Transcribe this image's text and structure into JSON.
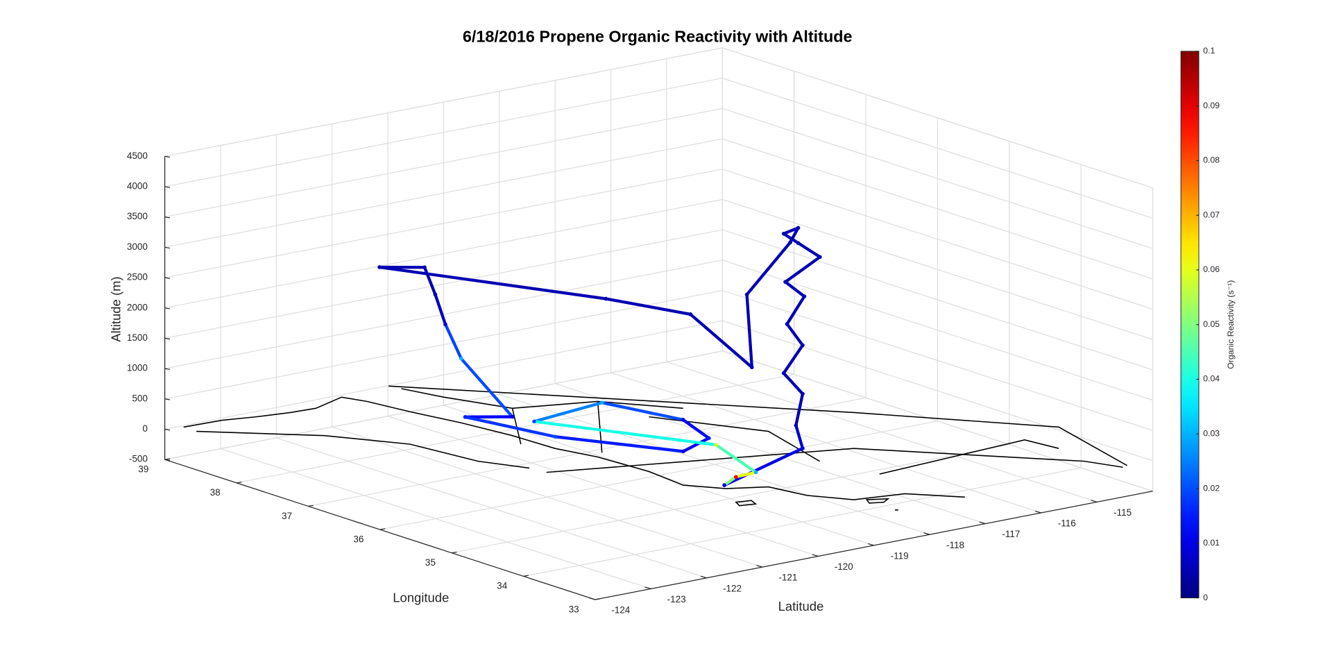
{
  "chart_data": {
    "type": "scatter3d",
    "title": "6/18/2016 Propene Organic Reactivity with Altitude",
    "xlabel": "Latitude",
    "ylabel": "Longitude",
    "zlabel": "Altitude (m)",
    "colorbar_label": "Organic Reactivity (s⁻¹)",
    "colormap": "jet",
    "clim": [
      0,
      0.1
    ],
    "cticks": [
      0,
      0.01,
      0.02,
      0.03,
      0.04,
      0.05,
      0.06,
      0.07,
      0.08,
      0.09,
      0.1
    ],
    "xlim": [
      -124,
      -114
    ],
    "xticks": [
      -124,
      -123,
      -122,
      -121,
      -120,
      -119,
      -118,
      -117,
      -116,
      -115
    ],
    "ylim": [
      33,
      39
    ],
    "yticks": [
      33,
      34,
      35,
      36,
      37,
      38,
      39
    ],
    "zlim": [
      -500,
      4500
    ],
    "zticks": [
      -500,
      0,
      500,
      1000,
      1500,
      2000,
      2500,
      3000,
      3500,
      4000,
      4500
    ],
    "grid": true,
    "series": [
      {
        "name": "Propene",
        "x": [
          -119.65,
          -117.5,
          -117.62,
          -117.5,
          -117.84,
          -117.5,
          -117.78,
          -117.47,
          -117.81,
          -117.19,
          -117.58,
          -117.84,
          -117.58,
          -117.44,
          -118.05,
          -118.41,
          -118.11,
          -119.15,
          -121.23,
          -120.73,
          -120.5,
          -120.37,
          -120.33,
          -119.67,
          -120.31,
          -119.98,
          -119.05,
          -118.41,
          -117.96,
          -118.28,
          -119.69,
          -118.77,
          -119.06,
          -119.34,
          -119.65
        ],
        "y": [
          34.58,
          35.16,
          35.16,
          35.16,
          35.16,
          35.16,
          35.16,
          35.16,
          35.16,
          35.16,
          35.16,
          35.16,
          35.16,
          35.38,
          35.51,
          35.16,
          36.25,
          36.62,
          38.16,
          37.92,
          37.95,
          37.91,
          37.72,
          37.52,
          37.68,
          36.68,
          35.62,
          35.76,
          36.47,
          37.35,
          37.2,
          35.38,
          34.6,
          34.66,
          34.58
        ],
        "z": [
          0,
          0,
          400,
          900,
          1300,
          1700,
          2100,
          2500,
          2800,
          3100,
          3400,
          3600,
          3650,
          3300,
          2500,
          1500,
          1900,
          2200,
          2500,
          2500,
          2000,
          1500,
          1000,
          0,
          50,
          50,
          50,
          100,
          50,
          50,
          50,
          200,
          100,
          50,
          0
        ],
        "values": [
          0.01,
          0.01,
          0.005,
          0.005,
          0.005,
          0.005,
          0.005,
          0.005,
          0.005,
          0.005,
          0.005,
          0.005,
          0.005,
          0.005,
          0.005,
          0.005,
          0.005,
          0.005,
          0.005,
          0.005,
          0.005,
          0.008,
          0.03,
          0.01,
          0.015,
          0.02,
          0.01,
          0.015,
          0.01,
          0.03,
          0.02,
          0.06,
          0.03,
          0.09,
          0.01
        ]
      }
    ]
  }
}
